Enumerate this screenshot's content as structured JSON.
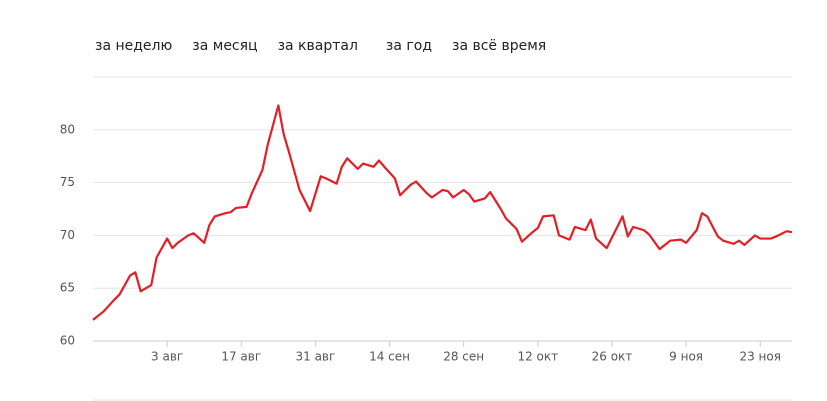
{
  "tabs": [
    "за неделю",
    "за месяц",
    "за квартал",
    "за год",
    "за всё время"
  ],
  "chart_data": {
    "type": "line",
    "x": [
      0,
      2,
      4,
      5,
      7,
      8,
      9,
      11,
      12,
      14,
      15,
      16,
      18,
      19,
      21,
      22,
      23,
      25,
      26,
      27,
      29,
      30,
      32,
      33,
      35,
      36,
      37,
      39,
      40,
      41,
      43,
      44,
      46,
      47,
      48,
      50,
      51,
      53,
      54,
      55,
      57,
      58,
      60,
      61,
      63,
      64,
      66,
      67,
      68,
      70,
      71,
      72,
      74,
      75,
      77,
      78,
      80,
      81,
      83,
      84,
      85,
      87,
      88,
      90,
      91,
      93,
      94,
      95,
      97,
      98,
      100,
      101,
      102,
      104,
      105,
      107,
      108,
      109,
      111,
      112,
      114,
      115,
      116,
      118,
      119,
      121,
      122,
      123,
      125,
      126,
      128,
      129,
      131,
      132
    ],
    "series": [
      {
        "color": "#e31e24",
        "values": [
          62.0,
          62.8,
          63.9,
          64.4,
          66.2,
          66.5,
          64.7,
          65.3,
          67.9,
          69.7,
          68.8,
          69.3,
          70.0,
          70.2,
          69.3,
          71.0,
          71.8,
          72.1,
          72.2,
          72.6,
          72.7,
          74.0,
          76.2,
          78.6,
          82.3,
          79.6,
          77.9,
          74.3,
          73.3,
          72.3,
          75.6,
          75.4,
          74.9,
          76.5,
          77.3,
          76.3,
          76.8,
          76.5,
          77.1,
          76.5,
          75.4,
          73.8,
          74.8,
          75.1,
          74.0,
          73.6,
          74.3,
          74.2,
          73.6,
          74.3,
          73.9,
          73.2,
          73.5,
          74.1,
          72.5,
          71.6,
          70.6,
          69.4,
          70.3,
          70.7,
          71.8,
          71.9,
          70.0,
          69.6,
          70.8,
          70.5,
          71.5,
          69.7,
          68.8,
          69.8,
          71.8,
          69.9,
          70.8,
          70.5,
          70.1,
          68.7,
          69.1,
          69.5,
          69.6,
          69.3,
          70.5,
          72.1,
          71.8,
          69.9,
          69.5,
          69.2,
          69.5,
          69.1,
          70.0,
          69.7,
          69.7,
          69.9,
          70.4,
          70.3
        ]
      }
    ],
    "xlim": [
      0,
      132
    ],
    "xticks": [
      {
        "value": 14,
        "label": "3 авг"
      },
      {
        "value": 28,
        "label": "17 авг"
      },
      {
        "value": 42,
        "label": "31 авг"
      },
      {
        "value": 56,
        "label": "14 сен"
      },
      {
        "value": 70,
        "label": "28 сен"
      },
      {
        "value": 84,
        "label": "12 окт"
      },
      {
        "value": 98,
        "label": "26 окт"
      },
      {
        "value": 112,
        "label": "9 ноя"
      },
      {
        "value": 126,
        "label": "23 ноя"
      }
    ],
    "ylim": [
      60,
      85
    ],
    "yticks": [
      60,
      65,
      70,
      75,
      80
    ],
    "grid": true
  }
}
